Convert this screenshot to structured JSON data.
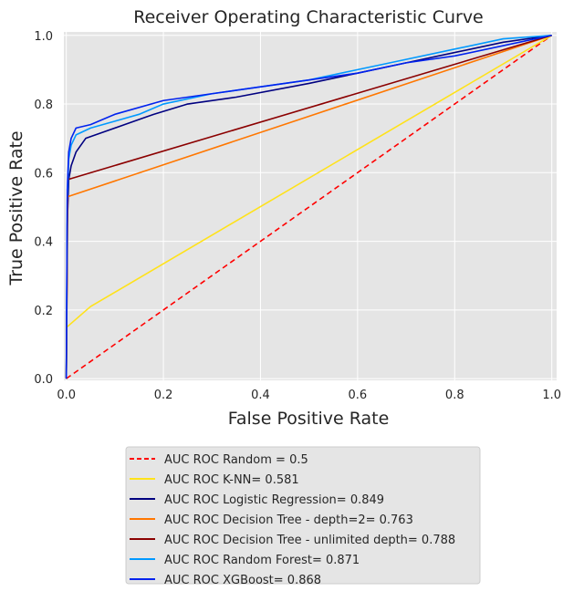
{
  "chart_data": {
    "type": "line",
    "title": "Receiver Operating Characteristic Curve",
    "xlabel": "False Positive Rate",
    "ylabel": "True Positive Rate",
    "xlim": [
      -0.005,
      1.01
    ],
    "ylim": [
      -0.005,
      1.01
    ],
    "xticks": [
      "0.0",
      "0.2",
      "0.4",
      "0.6",
      "0.8",
      "1.0"
    ],
    "yticks": [
      "0.0",
      "0.2",
      "0.4",
      "0.6",
      "0.8",
      "1.0"
    ],
    "grid": true,
    "legend_position": "below",
    "series": [
      {
        "name": "AUC ROC Random = 0.5",
        "color": "#ff0000",
        "dashed": true,
        "points": [
          [
            0,
            0
          ],
          [
            1,
            1
          ]
        ]
      },
      {
        "name": "AUC ROC K-NN= 0.581",
        "color": "#ffe21a",
        "points": [
          [
            0,
            0
          ],
          [
            0.001,
            0.15
          ],
          [
            0.05,
            0.21
          ],
          [
            1,
            1
          ]
        ]
      },
      {
        "name": "AUC ROC Logistic Regression= 0.849",
        "color": "#000080",
        "points": [
          [
            0,
            0
          ],
          [
            0.002,
            0.45
          ],
          [
            0.005,
            0.58
          ],
          [
            0.01,
            0.62
          ],
          [
            0.02,
            0.66
          ],
          [
            0.04,
            0.7
          ],
          [
            0.08,
            0.72
          ],
          [
            0.12,
            0.74
          ],
          [
            0.18,
            0.77
          ],
          [
            0.25,
            0.8
          ],
          [
            0.35,
            0.82
          ],
          [
            0.5,
            0.86
          ],
          [
            0.6,
            0.89
          ],
          [
            0.7,
            0.92
          ],
          [
            0.8,
            0.95
          ],
          [
            0.9,
            0.98
          ],
          [
            1,
            1
          ]
        ]
      },
      {
        "name": "AUC ROC Decision Tree - depth=2= 0.763",
        "color": "#ff7700",
        "points": [
          [
            0,
            0
          ],
          [
            0.003,
            0.53
          ],
          [
            1,
            1
          ]
        ]
      },
      {
        "name": "AUC ROC Decision Tree - unlimited depth= 0.788",
        "color": "#8b0000",
        "points": [
          [
            0,
            0
          ],
          [
            0.003,
            0.58
          ],
          [
            1,
            1
          ]
        ]
      },
      {
        "name": "AUC ROC Random Forest= 0.871",
        "color": "#0099ff",
        "points": [
          [
            0,
            0
          ],
          [
            0.002,
            0.52
          ],
          [
            0.005,
            0.64
          ],
          [
            0.01,
            0.68
          ],
          [
            0.02,
            0.71
          ],
          [
            0.05,
            0.73
          ],
          [
            0.1,
            0.75
          ],
          [
            0.15,
            0.77
          ],
          [
            0.2,
            0.8
          ],
          [
            0.3,
            0.83
          ],
          [
            0.4,
            0.85
          ],
          [
            0.5,
            0.87
          ],
          [
            0.6,
            0.9
          ],
          [
            0.7,
            0.93
          ],
          [
            0.8,
            0.96
          ],
          [
            0.9,
            0.99
          ],
          [
            1,
            1
          ]
        ]
      },
      {
        "name": "AUC ROC XGBoost= 0.868",
        "color": "#0022ee",
        "points": [
          [
            0,
            0
          ],
          [
            0.002,
            0.55
          ],
          [
            0.005,
            0.66
          ],
          [
            0.01,
            0.7
          ],
          [
            0.02,
            0.73
          ],
          [
            0.05,
            0.74
          ],
          [
            0.1,
            0.77
          ],
          [
            0.2,
            0.81
          ],
          [
            0.3,
            0.83
          ],
          [
            0.4,
            0.85
          ],
          [
            0.5,
            0.87
          ],
          [
            0.6,
            0.89
          ],
          [
            0.7,
            0.92
          ],
          [
            0.8,
            0.94
          ],
          [
            0.9,
            0.97
          ],
          [
            1,
            1
          ]
        ]
      }
    ]
  }
}
